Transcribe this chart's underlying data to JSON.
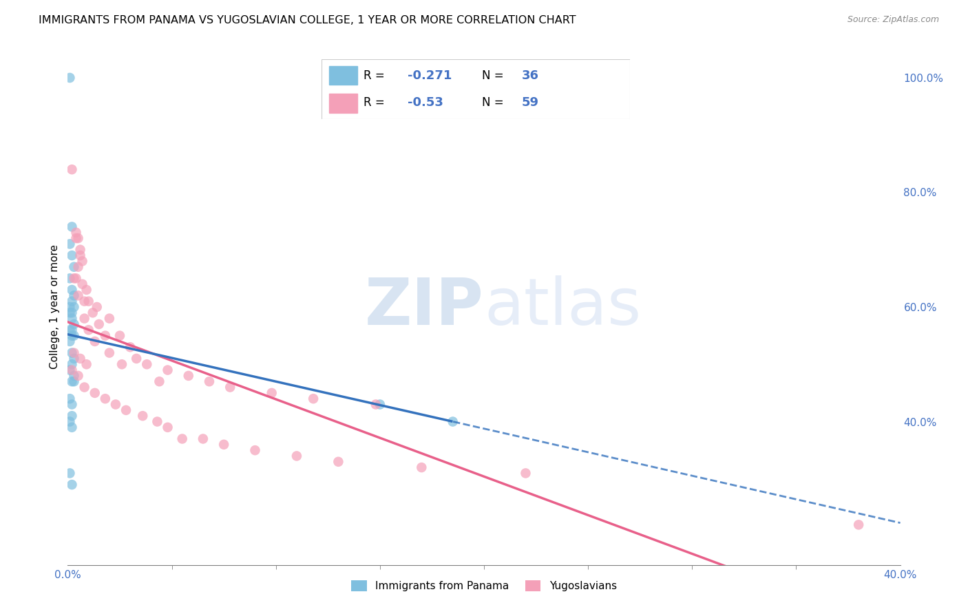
{
  "title": "IMMIGRANTS FROM PANAMA VS YUGOSLAVIAN COLLEGE, 1 YEAR OR MORE CORRELATION CHART",
  "source": "Source: ZipAtlas.com",
  "ylabel": "College, 1 year or more",
  "legend_label1": "Immigrants from Panama",
  "legend_label2": "Yugoslavians",
  "R1": -0.271,
  "N1": 36,
  "R2": -0.53,
  "N2": 59,
  "color_blue": "#7fbfdf",
  "color_pink": "#f4a0b8",
  "color_blue_line": "#3472bd",
  "color_pink_line": "#e8608a",
  "xmin": 0.0,
  "xmax": 0.4,
  "ymin": 0.15,
  "ymax": 1.05,
  "blue_x": [
    0.001,
    0.002,
    0.001,
    0.002,
    0.003,
    0.001,
    0.002,
    0.003,
    0.002,
    0.001,
    0.003,
    0.002,
    0.001,
    0.002,
    0.003,
    0.001,
    0.002,
    0.001,
    0.002,
    0.003,
    0.002,
    0.001,
    0.003,
    0.002,
    0.003,
    0.001,
    0.002,
    0.002,
    0.001,
    0.002,
    0.003,
    0.002,
    0.15,
    0.185,
    0.001,
    0.002
  ],
  "blue_y": [
    1.0,
    0.74,
    0.71,
    0.69,
    0.67,
    0.65,
    0.63,
    0.62,
    0.61,
    0.6,
    0.6,
    0.59,
    0.59,
    0.58,
    0.57,
    0.56,
    0.55,
    0.54,
    0.52,
    0.51,
    0.5,
    0.49,
    0.48,
    0.47,
    0.47,
    0.44,
    0.43,
    0.41,
    0.4,
    0.39,
    0.55,
    0.56,
    0.43,
    0.4,
    0.31,
    0.29
  ],
  "pink_x": [
    0.002,
    0.004,
    0.004,
    0.005,
    0.006,
    0.006,
    0.007,
    0.005,
    0.003,
    0.004,
    0.007,
    0.009,
    0.005,
    0.01,
    0.008,
    0.014,
    0.012,
    0.008,
    0.02,
    0.015,
    0.01,
    0.018,
    0.025,
    0.013,
    0.03,
    0.02,
    0.033,
    0.026,
    0.038,
    0.048,
    0.058,
    0.044,
    0.068,
    0.078,
    0.098,
    0.118,
    0.148,
    0.003,
    0.006,
    0.009,
    0.002,
    0.005,
    0.008,
    0.013,
    0.018,
    0.023,
    0.028,
    0.036,
    0.043,
    0.048,
    0.055,
    0.065,
    0.075,
    0.09,
    0.11,
    0.13,
    0.17,
    0.22,
    0.38
  ],
  "pink_y": [
    0.84,
    0.73,
    0.72,
    0.72,
    0.7,
    0.69,
    0.68,
    0.67,
    0.65,
    0.65,
    0.64,
    0.63,
    0.62,
    0.61,
    0.61,
    0.6,
    0.59,
    0.58,
    0.58,
    0.57,
    0.56,
    0.55,
    0.55,
    0.54,
    0.53,
    0.52,
    0.51,
    0.5,
    0.5,
    0.49,
    0.48,
    0.47,
    0.47,
    0.46,
    0.45,
    0.44,
    0.43,
    0.52,
    0.51,
    0.5,
    0.49,
    0.48,
    0.46,
    0.45,
    0.44,
    0.43,
    0.42,
    0.41,
    0.4,
    0.39,
    0.37,
    0.37,
    0.36,
    0.35,
    0.34,
    0.33,
    0.32,
    0.31,
    0.22
  ]
}
